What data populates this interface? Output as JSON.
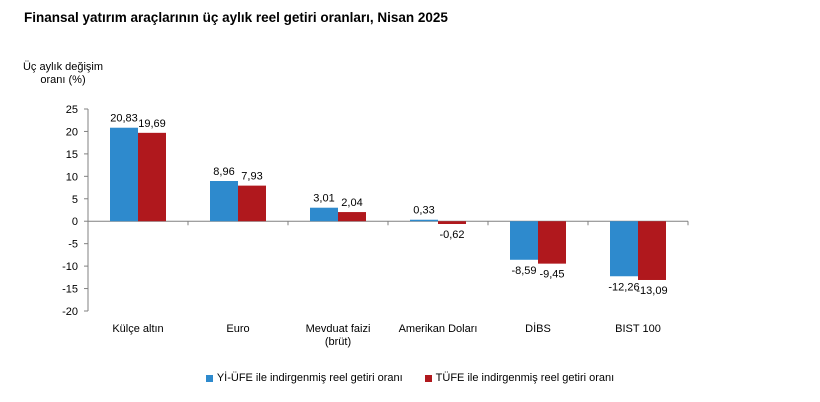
{
  "chart_data": {
    "type": "bar",
    "title": "Finansal yatırım araçlarının üç aylık reel getiri oranları, Nisan 2025",
    "ylabel": [
      "Üç aylık değişim",
      "oranı (%)"
    ],
    "ylim": [
      -20,
      25
    ],
    "yticks": [
      25,
      20,
      15,
      10,
      5,
      0,
      -5,
      -10,
      -15,
      -20
    ],
    "categories": [
      [
        "Külçe altın"
      ],
      [
        "Euro"
      ],
      [
        "Mevduat faizi",
        "(brüt)"
      ],
      [
        "Amerikan Doları"
      ],
      [
        "DİBS"
      ],
      [
        "BIST 100"
      ]
    ],
    "series": [
      {
        "name": "Yİ-ÜFE ile indirgenmiş reel getiri oranı",
        "color": "#2E8ACD",
        "values": [
          20.83,
          8.96,
          3.01,
          0.33,
          -8.59,
          -12.26
        ],
        "labels": [
          "20,83",
          "8,96",
          "3,01",
          "0,33",
          "-8,59",
          "-12,26"
        ]
      },
      {
        "name": "TÜFE ile indirgenmiş reel getiri oranı",
        "color": "#B0181D",
        "values": [
          19.69,
          7.93,
          2.04,
          -0.62,
          -9.45,
          -13.09
        ],
        "labels": [
          "19,69",
          "7,93",
          "2,04",
          "-0,62",
          "-9,45",
          "-13,09"
        ]
      }
    ],
    "grid": false,
    "legend_position": "bottom"
  }
}
